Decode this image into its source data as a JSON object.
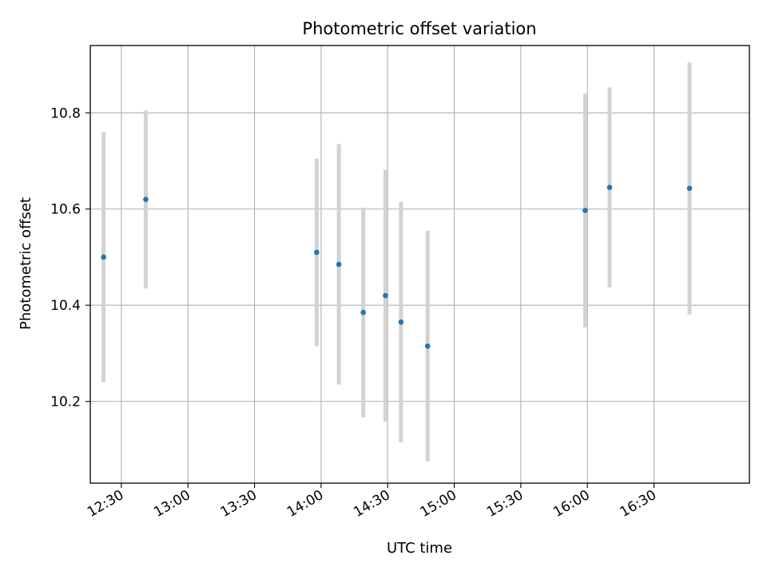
{
  "chart_data": {
    "type": "scatter",
    "title": "Photometric offset variation",
    "xlabel": "UTC time",
    "ylabel": "Photometric offset",
    "x_tick_labels": [
      "12:30",
      "13:00",
      "13:30",
      "14:00",
      "14:30",
      "15:00",
      "15:30",
      "16:00",
      "16:30"
    ],
    "y_tick_labels": [
      "10.2",
      "10.4",
      "10.6",
      "10.8"
    ],
    "y_ticks": [
      10.2,
      10.4,
      10.6,
      10.8
    ],
    "xlim": [
      "12:16",
      "17:13"
    ],
    "ylim": [
      10.03,
      10.94
    ],
    "grid": true,
    "legend": "none",
    "colors": {
      "point": "#1f77b4",
      "errorbar": "#d3d3d3",
      "grid": "#b0b0b0"
    },
    "points": [
      {
        "x": "12:22",
        "y": 10.5,
        "yerr": 0.26
      },
      {
        "x": "12:41",
        "y": 10.62,
        "yerr": 0.185
      },
      {
        "x": "13:58",
        "y": 10.51,
        "yerr": 0.195
      },
      {
        "x": "14:08",
        "y": 10.485,
        "yerr": 0.25
      },
      {
        "x": "14:19",
        "y": 10.385,
        "yerr": 0.218
      },
      {
        "x": "14:29",
        "y": 10.42,
        "yerr": 0.262
      },
      {
        "x": "14:36",
        "y": 10.365,
        "yerr": 0.25
      },
      {
        "x": "14:48",
        "y": 10.315,
        "yerr": 0.24
      },
      {
        "x": "15:59",
        "y": 10.597,
        "yerr": 0.243
      },
      {
        "x": "16:10",
        "y": 10.645,
        "yerr": 0.208
      },
      {
        "x": "16:46",
        "y": 10.643,
        "yerr": 0.262
      }
    ]
  }
}
